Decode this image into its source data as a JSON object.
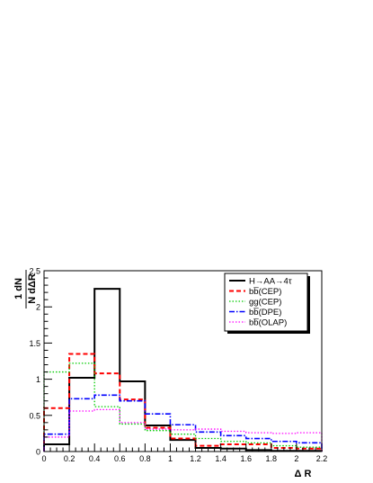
{
  "chart_data": {
    "type": "line",
    "style": "step-histogram",
    "xlabel": "Δ R",
    "ylabel": {
      "numerator": "1 dN",
      "denominator": "N dΔR"
    },
    "xlim": [
      0,
      2.2
    ],
    "ylim": [
      0,
      2.5
    ],
    "x_ticks": [
      "0",
      "0.2",
      "0.4",
      "0.6",
      "0.8",
      "1",
      "1.2",
      "1.4",
      "1.6",
      "1.8",
      "2",
      "2.2"
    ],
    "y_ticks": [
      "0",
      "0.5",
      "1",
      "1.5",
      "2",
      "2.5"
    ],
    "bin_edges": [
      0,
      0.2,
      0.4,
      0.6,
      0.8,
      1.0,
      1.2,
      1.4,
      1.6,
      1.8,
      2.0,
      2.2
    ],
    "grid": false,
    "legend_position": "top-right",
    "series": [
      {
        "name": "H→AA→4τ",
        "color": "#000000",
        "dash": "solid",
        "width": 2,
        "values": [
          0.1,
          1.02,
          2.25,
          0.97,
          0.36,
          0.16,
          0.05,
          0.04,
          0.02,
          0.01,
          0.01
        ]
      },
      {
        "name": "bb̅(CEP)",
        "color": "#ff0000",
        "dash": "dashed",
        "width": 2,
        "values": [
          0.6,
          1.35,
          1.08,
          0.72,
          0.33,
          0.18,
          0.08,
          0.1,
          0.1,
          0.05,
          0.04
        ]
      },
      {
        "name": "gg(CEP)",
        "color": "#00cc00",
        "dash": "dotted",
        "width": 1.3,
        "values": [
          1.1,
          1.22,
          0.62,
          0.38,
          0.29,
          0.24,
          0.18,
          0.14,
          0.12,
          0.08,
          0.06
        ]
      },
      {
        "name": "bb̅(DPE)",
        "color": "#0000ff",
        "dash": "dashdot",
        "width": 1.6,
        "values": [
          0.24,
          0.73,
          0.78,
          0.7,
          0.52,
          0.37,
          0.27,
          0.22,
          0.18,
          0.14,
          0.12
        ]
      },
      {
        "name": "bb̅(OLAP)",
        "color": "#ff00ff",
        "dash": "dotted",
        "width": 1.3,
        "values": [
          0.2,
          0.56,
          0.58,
          0.4,
          0.31,
          0.3,
          0.31,
          0.28,
          0.26,
          0.25,
          0.26
        ]
      }
    ]
  }
}
